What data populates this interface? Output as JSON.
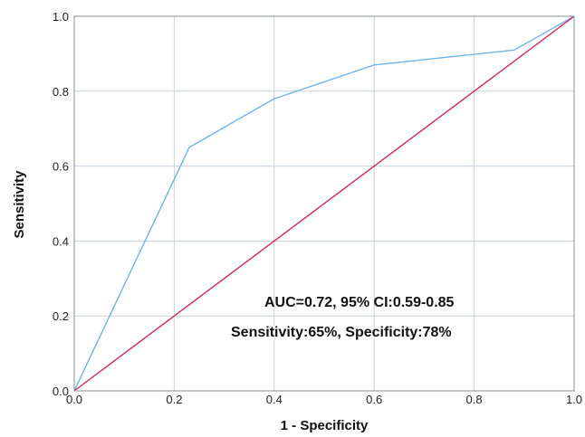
{
  "chart_data": {
    "type": "line",
    "xlabel": "1 - Specificity",
    "ylabel": "Sensitivity",
    "xlim": [
      0,
      1
    ],
    "ylim": [
      0,
      1
    ],
    "x_ticks": [
      0.0,
      0.2,
      0.4,
      0.6,
      0.8,
      1.0
    ],
    "y_ticks": [
      0.0,
      0.2,
      0.4,
      0.6,
      0.8,
      1.0
    ],
    "x_tick_labels": [
      "0.0",
      "0.2",
      "0.4",
      "0.6",
      "0.8",
      "1.0"
    ],
    "y_tick_labels": [
      "0.0",
      "0.2",
      "0.4",
      "0.6",
      "0.8",
      "1.0"
    ],
    "grid": true,
    "series": [
      {
        "color": "#6fb4e6",
        "x": [
          0.0,
          0.23,
          0.4,
          0.6,
          0.88,
          1.0
        ],
        "y": [
          0.0,
          0.65,
          0.78,
          0.87,
          0.91,
          1.0
        ]
      },
      {
        "color": "#c8285a",
        "x": [
          0.0,
          1.0
        ],
        "y": [
          0.0,
          1.0
        ]
      }
    ],
    "annotations": [
      "AUC=0.72, 95% CI:0.59-0.85",
      "Sensitivity:65%, Specificity:78%"
    ]
  },
  "colors": {
    "grid": "#c8d3dc",
    "axis": "#8a8f94",
    "background": "#ffffff"
  }
}
